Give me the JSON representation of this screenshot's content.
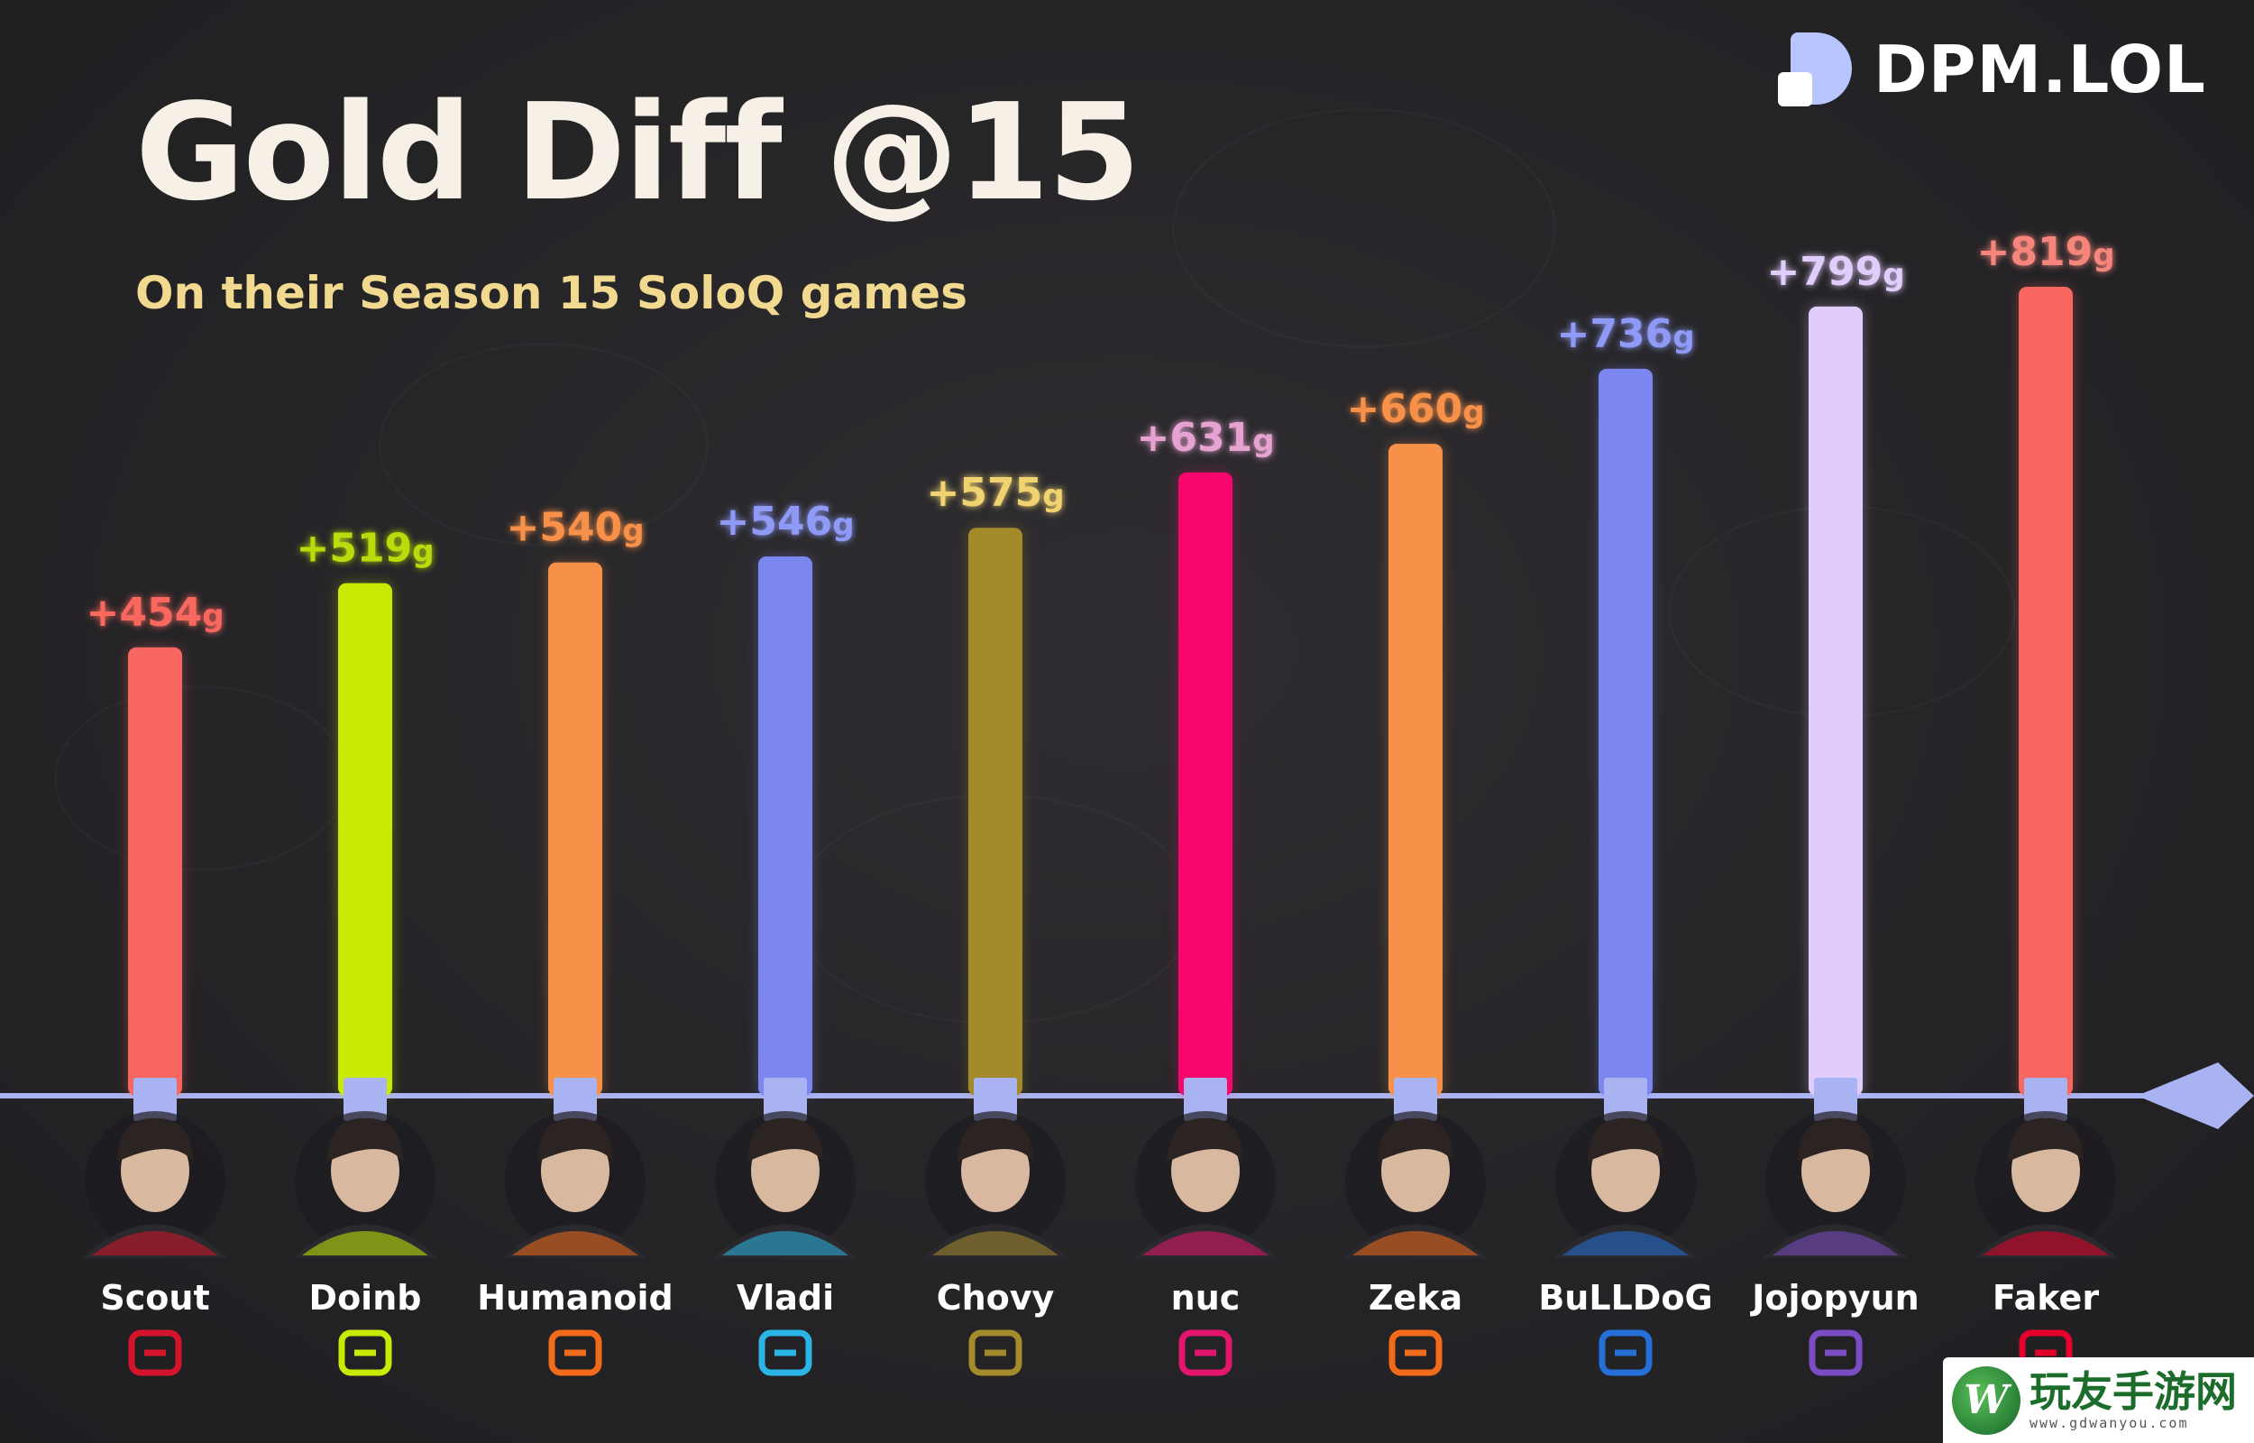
{
  "brand": {
    "name": "DPM.LOL"
  },
  "chart_data": {
    "type": "bar",
    "title": "Gold Diff @15",
    "subtitle": "On their Season 15 SoloQ games",
    "value_unit": "g",
    "value_prefix": "+",
    "categories": [
      "Scout",
      "Doinb",
      "Humanoid",
      "Vladi",
      "Chovy",
      "nuc",
      "Zeka",
      "BuLLDoG",
      "Jojopyun",
      "Faker"
    ],
    "values": [
      454,
      519,
      540,
      546,
      575,
      631,
      660,
      736,
      799,
      819
    ],
    "bar_colors": [
      "#f8675f",
      "#c8ea05",
      "#f79049",
      "#7b87ef",
      "#a58a2c",
      "#f8066d",
      "#f79049",
      "#7b87ef",
      "#e1cdfb",
      "#f8675f"
    ],
    "label_colors": [
      "#f8675f",
      "#b9dc0e",
      "#f79049",
      "#8f9af7",
      "#f0d36f",
      "#e6a2d0",
      "#f79049",
      "#8f9af7",
      "#e1cdfb",
      "#f6857b"
    ],
    "teams": [
      {
        "icon": "jdg-logo-icon",
        "color": "#d3142b"
      },
      {
        "icon": "ninjas-in-pyjamas-logo-icon",
        "color": "#c8ea05"
      },
      {
        "icon": "fnatic-logo-icon",
        "color": "#f26a1b"
      },
      {
        "icon": "karmine-corp-logo-icon",
        "color": "#2bb5e6"
      },
      {
        "icon": "gen-g-logo-icon",
        "color": "#a58a2c"
      },
      {
        "icon": "shifters-logo-icon",
        "color": "#e3166d"
      },
      {
        "icon": "hanwha-life-logo-icon",
        "color": "#f26a1b"
      },
      {
        "icon": "dplus-kia-logo-icon",
        "color": "#2470d8"
      },
      {
        "icon": "koi-logo-icon",
        "color": "#7c4cc4"
      },
      {
        "icon": "t1-logo-icon",
        "color": "#e4002b"
      }
    ],
    "ylim": [
      0,
      819
    ],
    "axis_color": "#aab3f2",
    "grid": false,
    "legend": "none"
  },
  "watermark": {
    "logo_letter": "W",
    "title": "玩友手游网",
    "url": "www.gdwanyou.com"
  }
}
